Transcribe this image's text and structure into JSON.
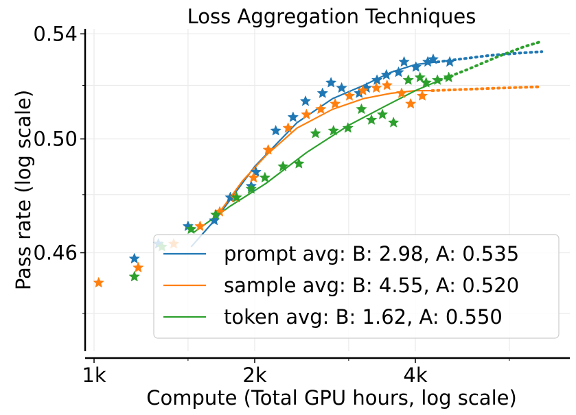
{
  "chart_data": {
    "type": "scatter",
    "title": "Loss Aggregation Techniques",
    "xlabel": "Compute (Total GPU hours, log scale)",
    "ylabel": "Pass rate (log scale)",
    "x_scale": "log",
    "y_scale": "log",
    "xlim": [
      1000,
      7000
    ],
    "ylim": [
      0.428,
      0.542
    ],
    "x_ticks": [
      {
        "value": 1000,
        "label": "1k"
      },
      {
        "value": 2000,
        "label": "2k"
      },
      {
        "value": 4000,
        "label": "4k"
      }
    ],
    "y_ticks": [
      {
        "value": 0.46,
        "label": "0.46"
      },
      {
        "value": 0.5,
        "label": "0.50"
      },
      {
        "value": 0.54,
        "label": "0.54"
      }
    ],
    "grid": true,
    "legend_position": "lower-right",
    "series": [
      {
        "name": "prompt avg: B: 2.98, A: 0.535",
        "color": "#1f77b4",
        "points": [
          [
            1190,
            0.458
          ],
          [
            1320,
            0.463
          ],
          [
            1500,
            0.469
          ],
          [
            1680,
            0.471
          ],
          [
            1800,
            0.479
          ],
          [
            1970,
            0.483
          ],
          [
            2010,
            0.488
          ],
          [
            2190,
            0.503
          ],
          [
            2360,
            0.508
          ],
          [
            2490,
            0.514
          ],
          [
            2680,
            0.517
          ],
          [
            2780,
            0.521
          ],
          [
            2910,
            0.519
          ],
          [
            3140,
            0.517
          ],
          [
            3240,
            0.519
          ],
          [
            3390,
            0.522
          ],
          [
            3530,
            0.524
          ],
          [
            3720,
            0.525
          ],
          [
            3810,
            0.529
          ],
          [
            4010,
            0.527
          ],
          [
            4220,
            0.529
          ],
          [
            4320,
            0.53
          ],
          [
            4640,
            0.529
          ]
        ],
        "fit_solid": [
          [
            1520,
            0.462
          ],
          [
            1700,
            0.472
          ],
          [
            2000,
            0.49
          ],
          [
            2400,
            0.506
          ],
          [
            2800,
            0.515
          ],
          [
            3200,
            0.52
          ],
          [
            3600,
            0.525
          ],
          [
            4000,
            0.528
          ],
          [
            4400,
            0.529
          ]
        ],
        "fit_dotted": [
          [
            4400,
            0.529
          ],
          [
            4800,
            0.53
          ],
          [
            5500,
            0.5315
          ],
          [
            6300,
            0.5325
          ],
          [
            6900,
            0.533
          ]
        ]
      },
      {
        "name": "sample avg: B: 4.55, A: 0.520",
        "color": "#ff7f0e",
        "points": [
          [
            1020,
            0.45
          ],
          [
            1210,
            0.455
          ],
          [
            1410,
            0.463
          ],
          [
            1580,
            0.469
          ],
          [
            1720,
            0.474
          ],
          [
            1840,
            0.479
          ],
          [
            1990,
            0.486
          ],
          [
            2120,
            0.496
          ],
          [
            2310,
            0.504
          ],
          [
            2500,
            0.509
          ],
          [
            2660,
            0.511
          ],
          [
            2830,
            0.513
          ],
          [
            3010,
            0.516
          ],
          [
            3190,
            0.518
          ],
          [
            3380,
            0.519
          ],
          [
            3540,
            0.52
          ],
          [
            3770,
            0.517
          ],
          [
            3920,
            0.513
          ],
          [
            4120,
            0.516
          ]
        ],
        "fit_solid": [
          [
            1720,
            0.474
          ],
          [
            1900,
            0.485
          ],
          [
            2100,
            0.494
          ],
          [
            2400,
            0.504
          ],
          [
            2800,
            0.511
          ],
          [
            3200,
            0.515
          ],
          [
            3600,
            0.517
          ],
          [
            4000,
            0.518
          ],
          [
            4300,
            0.518
          ]
        ],
        "fit_dotted": [
          [
            4300,
            0.518
          ],
          [
            5000,
            0.5185
          ],
          [
            5800,
            0.519
          ],
          [
            6900,
            0.5195
          ]
        ]
      },
      {
        "name": "token avg: B: 1.62, A: 0.550",
        "color": "#2ca02c",
        "points": [
          [
            1190,
            0.452
          ],
          [
            1340,
            0.462
          ],
          [
            1520,
            0.468
          ],
          [
            1690,
            0.473
          ],
          [
            1850,
            0.479
          ],
          [
            1970,
            0.482
          ],
          [
            2090,
            0.486
          ],
          [
            2260,
            0.49
          ],
          [
            2420,
            0.491
          ],
          [
            2600,
            0.502
          ],
          [
            2810,
            0.503
          ],
          [
            2990,
            0.504
          ],
          [
            3170,
            0.511
          ],
          [
            3310,
            0.507
          ],
          [
            3470,
            0.509
          ],
          [
            3640,
            0.506
          ],
          [
            3880,
            0.522
          ],
          [
            4080,
            0.523
          ],
          [
            4190,
            0.521
          ],
          [
            4400,
            0.522
          ],
          [
            4620,
            0.523
          ]
        ],
        "fit_solid": [
          [
            1540,
            0.467
          ],
          [
            1800,
            0.476
          ],
          [
            2100,
            0.484
          ],
          [
            2500,
            0.495
          ],
          [
            3000,
            0.505
          ],
          [
            3500,
            0.512
          ],
          [
            4000,
            0.518
          ],
          [
            4450,
            0.522
          ]
        ],
        "fit_dotted": [
          [
            4450,
            0.522
          ],
          [
            5000,
            0.526
          ],
          [
            5700,
            0.531
          ],
          [
            6400,
            0.535
          ],
          [
            6900,
            0.537
          ]
        ]
      }
    ]
  }
}
